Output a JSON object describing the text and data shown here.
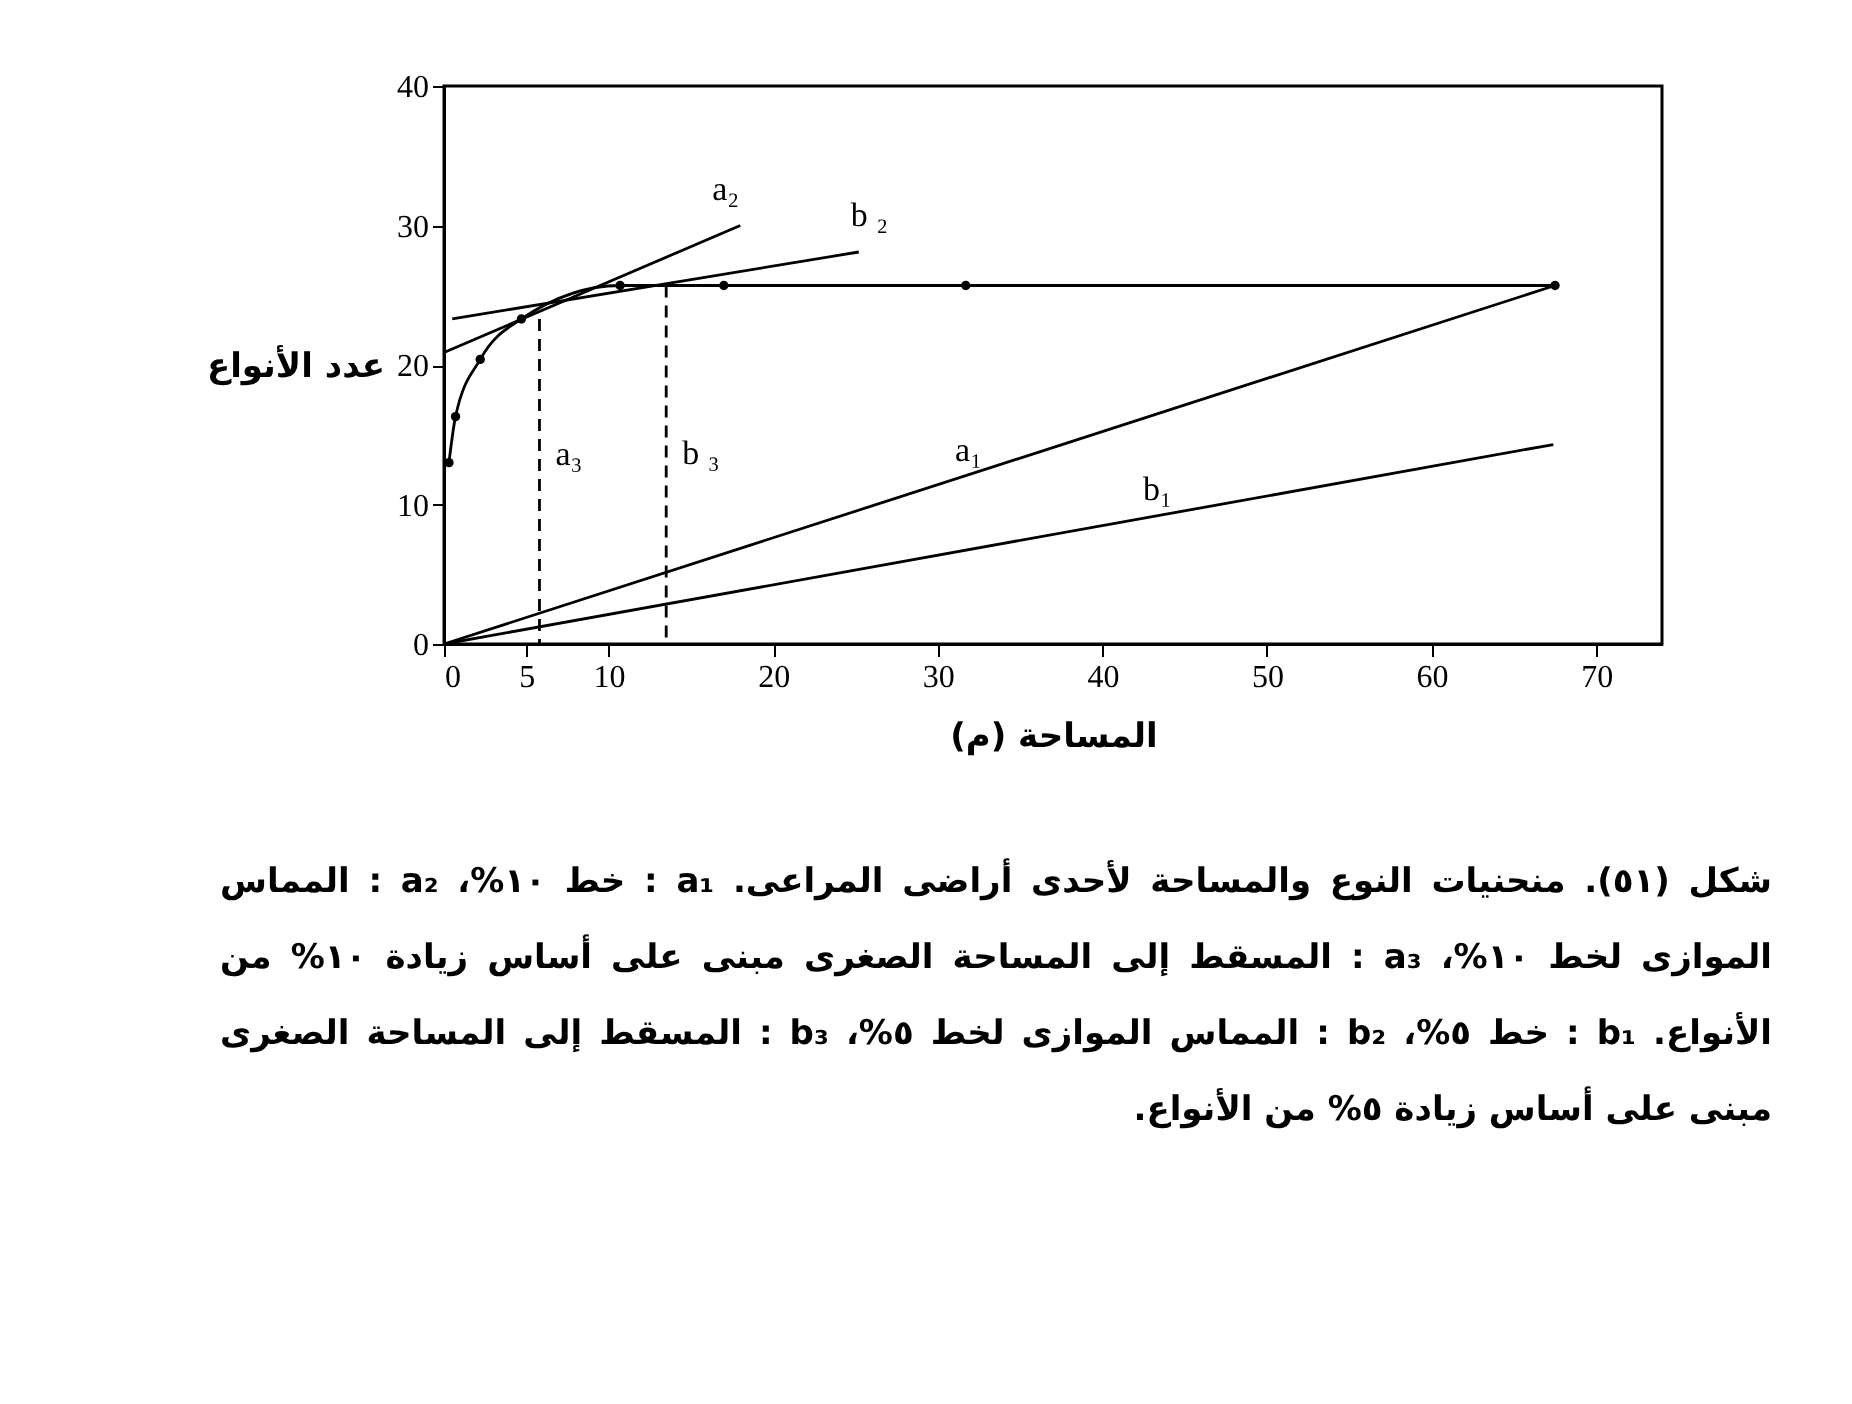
{
  "chart_data": {
    "type": "line",
    "xlabel": "المساحة (م)",
    "ylabel": "عدد الأنواع",
    "xlim": [
      0,
      74
    ],
    "ylim": [
      0,
      40
    ],
    "xticks": [
      0,
      5,
      10,
      20,
      30,
      40,
      50,
      60,
      70
    ],
    "yticks": [
      0,
      10,
      20,
      30,
      40
    ],
    "series": [
      {
        "color": "#000000",
        "marker": "circle",
        "x": [
          0.3,
          0.7,
          2.2,
          4.7,
          10.7,
          17,
          31.7,
          67.5
        ],
        "values": [
          13,
          16.3,
          20.4,
          23.3,
          25.7,
          25.7,
          25.7,
          25.7
        ]
      },
      {
        "name": "a₁",
        "color": "#000000",
        "x": [
          0,
          67.5
        ],
        "values": [
          0,
          25.7
        ]
      },
      {
        "name": "b₁",
        "color": "#000000",
        "x": [
          0,
          67.4
        ],
        "values": [
          0,
          14.3
        ]
      },
      {
        "name": "a₂",
        "color": "#000000",
        "x": [
          0,
          18
        ],
        "values": [
          20.9,
          30
        ]
      },
      {
        "name": "b ₂",
        "color": "#000000",
        "x": [
          0.5,
          25.2
        ],
        "values": [
          23.3,
          28.1
        ]
      },
      {
        "name": "a₃",
        "color": "#000000",
        "line_style": "dashed",
        "x": [
          5.8,
          5.8
        ],
        "values": [
          23.3,
          0
        ]
      },
      {
        "name": "b ₃",
        "color": "#000000",
        "line_style": "dashed",
        "x": [
          13.5,
          13.5
        ],
        "values": [
          25.7,
          0
        ]
      }
    ],
    "annotations": [
      "شكل (٥١). منحنيات النوع والمساحة لأحدى أراضى المراعى. a₁ : خط ١٠%، a₂ : المماس الموازى لخط ١٠%، a₃ : المسقط إلى المساحة الصغرى مبنى على أساس زيادة ١٠% من الأنواع. b₁ : خط ٥%، b₂ : المماس الموازى لخط ٥%، b₃ : المسقط إلى المساحة الصغرى مبنى على أساس زيادة ٥% من الأنواع."
    ]
  }
}
